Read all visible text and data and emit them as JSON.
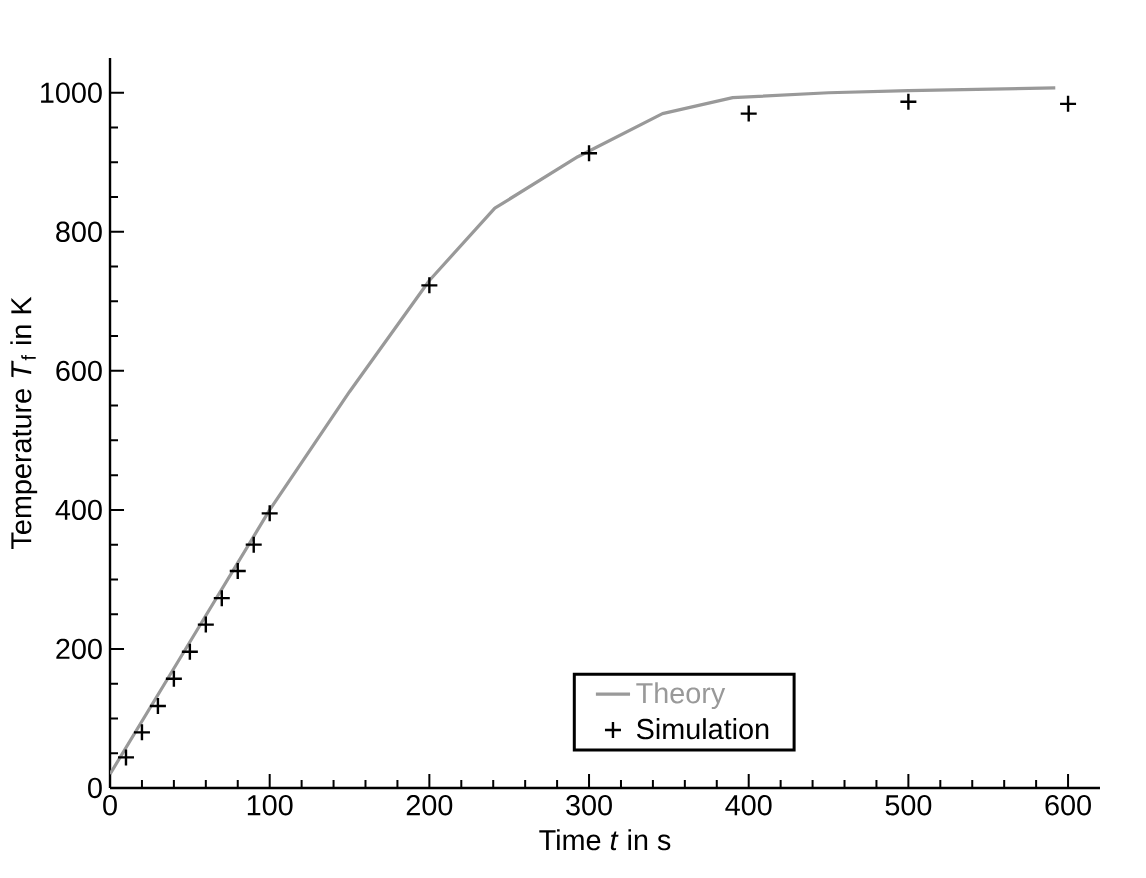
{
  "chart_data": {
    "type": "line",
    "xlabel": "Time *t* in s",
    "ylabel": "Temperature *T*$_{f}$ in K",
    "xlim": [
      0,
      620
    ],
    "ylim": [
      0,
      1050
    ],
    "xticks": [
      0,
      100,
      200,
      300,
      400,
      500,
      600
    ],
    "yticks": [
      0,
      200,
      400,
      600,
      800,
      1000
    ],
    "legend": "bottom",
    "grid": false,
    "series": [
      {
        "name": "Theory",
        "color": "#999999",
        "line_style": "solid",
        "marker": "none",
        "x": [
          0,
          50,
          100,
          150,
          200,
          241,
          293,
          346,
          390,
          450,
          500,
          592
        ],
        "values": [
          20,
          210,
          400,
          570,
          730,
          834,
          908,
          970,
          993,
          1000,
          1003,
          1007
        ]
      },
      {
        "name": "Simulation",
        "type": "scatter",
        "color": "#000000",
        "marker": "cross",
        "x": [
          10,
          20,
          30,
          40,
          50,
          60,
          70,
          80,
          90,
          100,
          200,
          300,
          400,
          500,
          600
        ],
        "values": [
          44,
          80,
          118,
          157,
          196,
          235,
          273,
          312,
          350,
          395,
          723,
          913,
          970,
          987,
          984
        ]
      }
    ]
  }
}
